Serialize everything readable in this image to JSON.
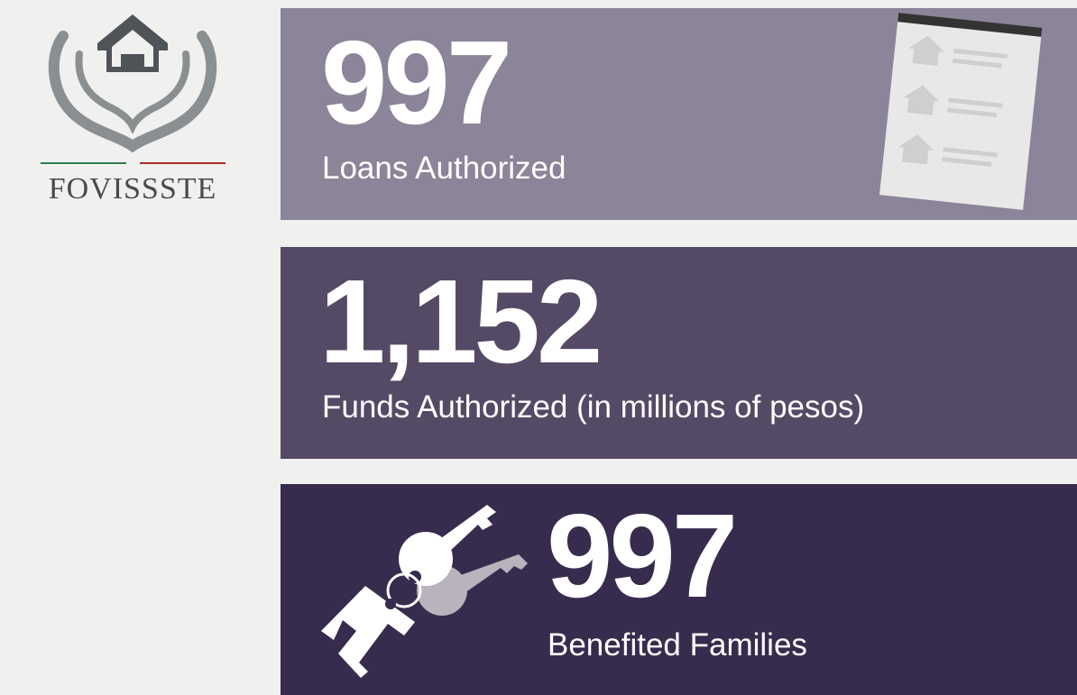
{
  "logo": {
    "text": "FOVISSSTE"
  },
  "stats": [
    {
      "value": "997",
      "label": "Loans Authorized"
    },
    {
      "value": "1,152",
      "label": "Funds Authorized (in millions of pesos)"
    },
    {
      "value": "997",
      "label": "Benefited Families"
    }
  ]
}
